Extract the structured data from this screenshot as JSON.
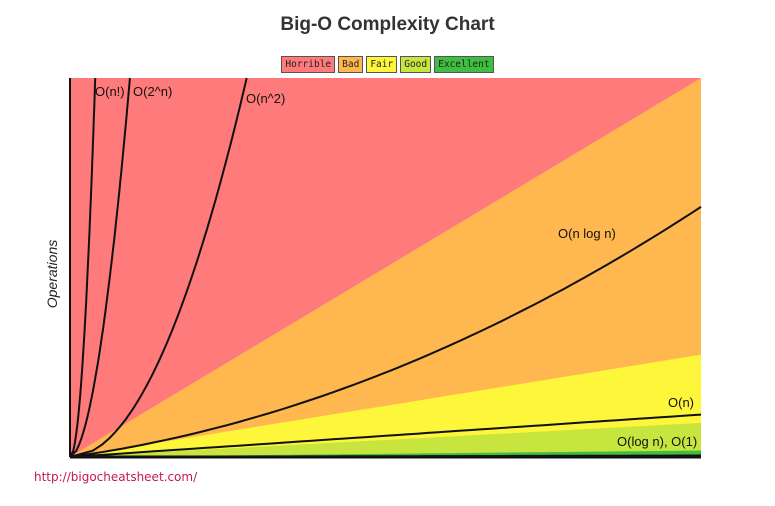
{
  "chart_data": {
    "type": "area",
    "title": "Big-O Complexity Chart",
    "xlabel": "",
    "ylabel": "Operations",
    "xlim": [
      0,
      1
    ],
    "ylim": [
      0,
      1
    ],
    "legend_position": "top-center",
    "zones": [
      {
        "name": "Horrible",
        "color": "#ff7b7b"
      },
      {
        "name": "Bad",
        "color": "#ffb84f"
      },
      {
        "name": "Fair",
        "color": "#fdf63a"
      },
      {
        "name": "Good",
        "color": "#c7e53e"
      },
      {
        "name": "Excellent",
        "color": "#3fbf3f"
      }
    ],
    "zone_boundaries": [
      {
        "below": "Horrible",
        "above": "Bad",
        "slope": 1.0
      },
      {
        "below": "Bad",
        "above": "Fair",
        "slope": 0.27
      },
      {
        "below": "Fair",
        "above": "Good",
        "slope": 0.09
      },
      {
        "below": "Good",
        "above": "Excellent",
        "slope": 0.017
      }
    ],
    "curves": [
      {
        "name": "O(n!)",
        "label": "O(n!)",
        "kind": "factorial"
      },
      {
        "name": "O(2^n)",
        "label": "O(2^n)",
        "kind": "exponential"
      },
      {
        "name": "O(n^2)",
        "label": "O(n^2)",
        "kind": "quadratic"
      },
      {
        "name": "O(n log n)",
        "label": "O(n log n)",
        "kind": "nlogn"
      },
      {
        "name": "O(n)",
        "label": "O(n)",
        "kind": "linear"
      },
      {
        "name": "O(log n), O(1)",
        "label": "O(log n), O(1)",
        "kind": "log"
      }
    ]
  },
  "source_link": "http://bigocheatsheet.com/"
}
